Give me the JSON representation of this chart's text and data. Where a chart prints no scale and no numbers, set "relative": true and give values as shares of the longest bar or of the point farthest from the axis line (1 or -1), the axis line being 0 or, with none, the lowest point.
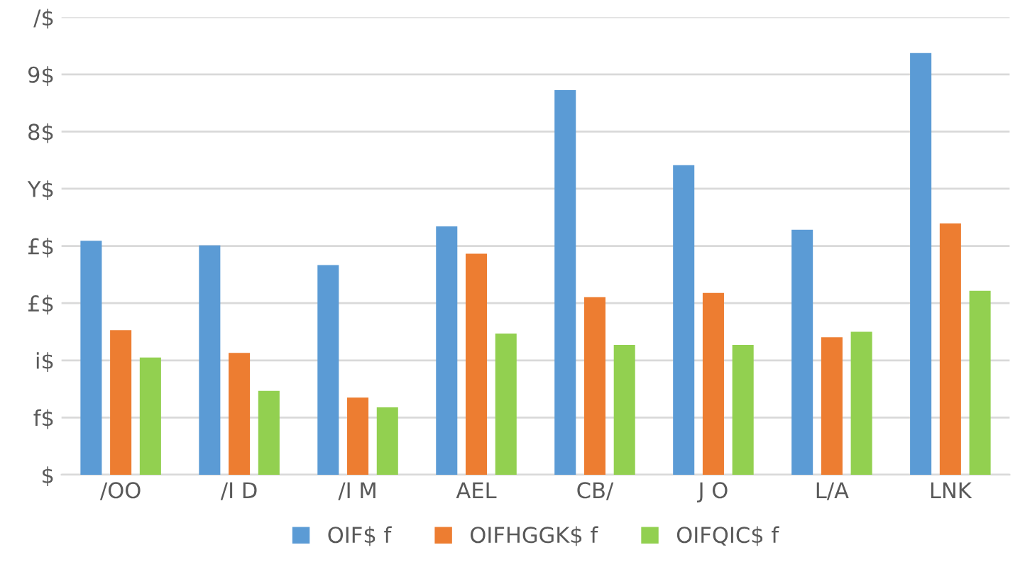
{
  "chart_data": {
    "type": "bar",
    "categories": [
      "/OO",
      "/I D",
      "/I M",
      "AEL",
      "CB/",
      "J O",
      "L/A",
      "LNK"
    ],
    "series": [
      {
        "name": "OIF$ f",
        "color": "#5b9bd5",
        "values": [
          0.555,
          0.544,
          0.497,
          0.589,
          0.912,
          0.734,
          0.581,
          1
        ]
      },
      {
        "name": "OIFHGGK$ f",
        "color": "#ed7d31",
        "values": [
          0.343,
          0.289,
          0.183,
          0.524,
          0.421,
          0.431,
          0.326,
          0.596
        ]
      },
      {
        "name": "OIFQIC$ f",
        "color": "#92d050",
        "values": [
          0.278,
          0.199,
          0.16,
          0.335,
          0.308,
          0.308,
          0.339,
          0.436
        ]
      }
    ],
    "relative": true,
    "annotations": [
      "$",
      "f$",
      "i$",
      "£$",
      "£$",
      "Y$",
      "8$",
      "9$",
      "/$"
    ],
    "grid": "y",
    "legend": "bottom"
  }
}
